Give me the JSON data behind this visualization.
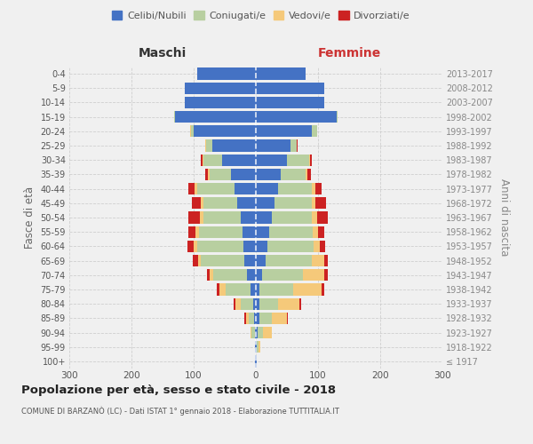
{
  "age_groups": [
    "100+",
    "95-99",
    "90-94",
    "85-89",
    "80-84",
    "75-79",
    "70-74",
    "65-69",
    "60-64",
    "55-59",
    "50-54",
    "45-49",
    "40-44",
    "35-39",
    "30-34",
    "25-29",
    "20-24",
    "15-19",
    "10-14",
    "5-9",
    "0-4"
  ],
  "birth_years": [
    "≤ 1917",
    "1918-1922",
    "1923-1927",
    "1928-1932",
    "1933-1937",
    "1938-1942",
    "1943-1947",
    "1948-1952",
    "1953-1957",
    "1958-1962",
    "1963-1967",
    "1968-1972",
    "1973-1977",
    "1978-1982",
    "1983-1987",
    "1988-1992",
    "1993-1997",
    "1998-2002",
    "2003-2007",
    "2008-2012",
    "2013-2017"
  ],
  "colors": {
    "celibi": "#4472c4",
    "coniugati": "#b8cfa0",
    "vedovi": "#f5c97a",
    "divorziati": "#cc2222"
  },
  "maschi": {
    "celibi": [
      1,
      1,
      2,
      3,
      5,
      8,
      14,
      18,
      20,
      22,
      25,
      30,
      35,
      40,
      55,
      70,
      100,
      130,
      115,
      115,
      95
    ],
    "coniugati": [
      0,
      0,
      5,
      8,
      20,
      40,
      55,
      70,
      75,
      70,
      60,
      55,
      60,
      35,
      30,
      10,
      5,
      2,
      0,
      0,
      0
    ],
    "vedovi": [
      0,
      0,
      2,
      5,
      8,
      10,
      5,
      5,
      5,
      5,
      5,
      3,
      3,
      2,
      1,
      1,
      1,
      0,
      0,
      0,
      0
    ],
    "divorziati": [
      0,
      0,
      0,
      2,
      3,
      5,
      5,
      8,
      10,
      12,
      18,
      15,
      10,
      5,
      3,
      1,
      0,
      0,
      0,
      0,
      0
    ]
  },
  "femmine": {
    "celibi": [
      1,
      2,
      3,
      5,
      5,
      5,
      10,
      15,
      18,
      22,
      25,
      30,
      35,
      40,
      50,
      55,
      90,
      130,
      110,
      110,
      80
    ],
    "coniugati": [
      0,
      2,
      8,
      20,
      30,
      55,
      65,
      75,
      75,
      70,
      65,
      60,
      55,
      40,
      35,
      10,
      8,
      2,
      0,
      0,
      0
    ],
    "vedovi": [
      1,
      3,
      15,
      25,
      35,
      45,
      35,
      20,
      10,
      8,
      8,
      5,
      5,
      3,
      2,
      1,
      1,
      0,
      0,
      0,
      0
    ],
    "divorziati": [
      0,
      0,
      0,
      2,
      3,
      5,
      5,
      5,
      8,
      10,
      18,
      18,
      10,
      5,
      3,
      1,
      0,
      0,
      0,
      0,
      0
    ]
  },
  "xlim": 300,
  "title": "Popolazione per età, sesso e stato civile - 2018",
  "subtitle": "COMUNE DI BARZANÒ (LC) - Dati ISTAT 1° gennaio 2018 - Elaborazione TUTTITALIA.IT",
  "xlabel_left": "Maschi",
  "xlabel_right": "Femmine",
  "ylabel_left": "Fasce di età",
  "ylabel_right": "Anni di nascita",
  "legend_labels": [
    "Celibi/Nubili",
    "Coniugati/e",
    "Vedovi/e",
    "Divorziati/e"
  ],
  "background_color": "#f0f0f0",
  "grid_color": "#cccccc"
}
